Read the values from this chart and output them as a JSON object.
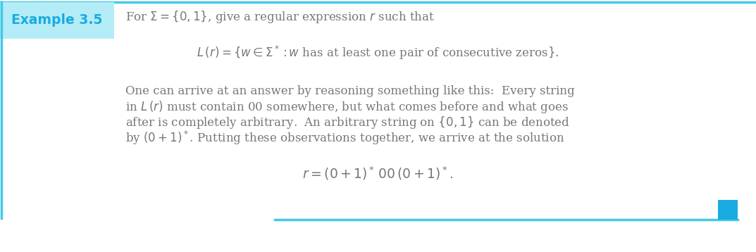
{
  "bg_color": "#ffffff",
  "header_box_color": "#b3ecf7",
  "header_box_text": "Example 3.5",
  "header_box_text_color": "#1aabe0",
  "cyan_color": "#45c8e8",
  "bottom_square_color": "#1aabe0",
  "text_color": "#777777",
  "font_size_header": 13.5,
  "font_size_body": 12.0
}
